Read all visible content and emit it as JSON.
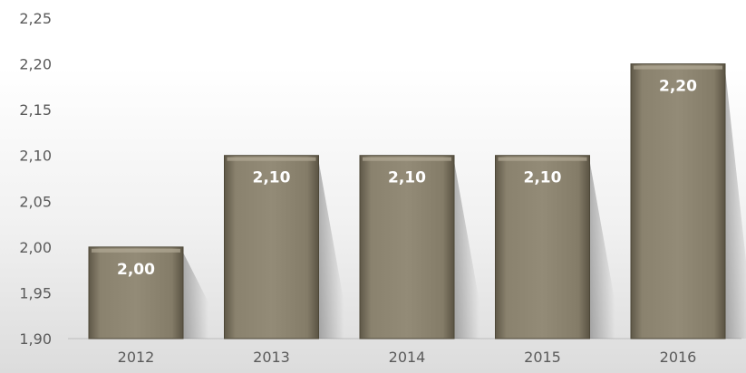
{
  "chart_data": {
    "type": "bar",
    "categories": [
      "2012",
      "2013",
      "2014",
      "2015",
      "2016"
    ],
    "values": [
      2.0,
      2.1,
      2.1,
      2.1,
      2.2
    ],
    "data_labels": [
      "2,00",
      "2,10",
      "2,10",
      "2,10",
      "2,20"
    ],
    "ylim": [
      1.9,
      2.25
    ],
    "y_ticks": [
      1.9,
      1.95,
      2.0,
      2.05,
      2.1,
      2.15,
      2.2,
      2.25
    ],
    "y_tick_labels": [
      "1,90",
      "1,95",
      "2,00",
      "2,05",
      "2,10",
      "2,15",
      "2,20",
      "2,25"
    ],
    "grid": false,
    "title": "",
    "xlabel": "",
    "ylabel": "",
    "bar_color": "#8a826e",
    "label_color": "#ffffff"
  }
}
